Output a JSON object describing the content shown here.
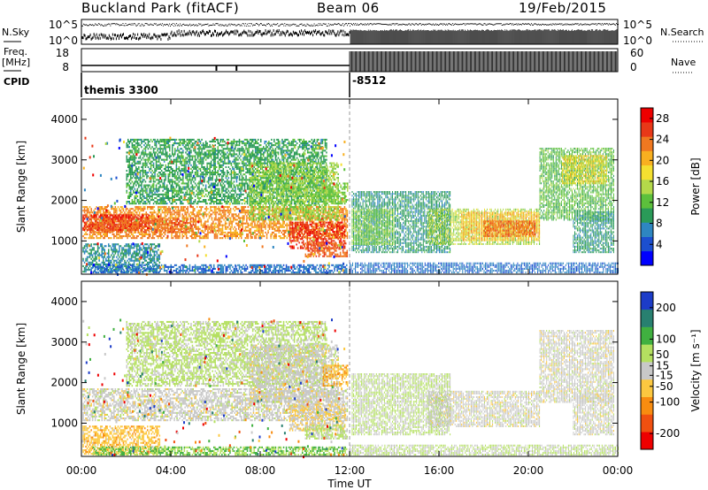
{
  "header": {
    "station": "Buckland Park (fitACF)",
    "beam": "Beam 06",
    "date": "19/Feb/2015"
  },
  "top_panel": {
    "left_labels": {
      "nsky": "N.Sky",
      "freq_line1": "Freq.",
      "freq_line2": "[MHz]",
      "cpid": "CPID"
    },
    "right_labels": {
      "nsearch": "N.Search",
      "nave": "Nave"
    },
    "noise_ticks": [
      "10^5",
      "10^0"
    ],
    "freq_ticks": [
      "18",
      "8"
    ],
    "nave_ticks": [
      "60",
      "0"
    ],
    "cpid_values": [
      "themis 3300",
      "-8512"
    ]
  },
  "x_axis": {
    "label": "Time UT",
    "ticks": [
      "00:00",
      "04:00",
      "08:00",
      "12:00",
      "16:00",
      "20:00",
      "00:00"
    ],
    "tick_hours": [
      0,
      4,
      8,
      12,
      16,
      20,
      24
    ]
  },
  "y_axis": {
    "label": "Slant Range [km]",
    "ticks": [
      "1000",
      "2000",
      "3000",
      "4000"
    ],
    "tick_values": [
      1000,
      2000,
      3000,
      4000
    ]
  },
  "chart_data": [
    {
      "type": "heatmap",
      "panel": "power",
      "ylabel": "Slant Range [km]",
      "xlabel": "Time UT",
      "xlim_hours": [
        0,
        24
      ],
      "ylim_km": [
        180,
        4500
      ],
      "colorbar": {
        "label": "Power [dB]",
        "ticks": [
          "4",
          "8",
          "12",
          "16",
          "20",
          "24",
          "28"
        ],
        "tick_values": [
          4,
          8,
          12,
          16,
          20,
          24,
          28
        ],
        "range": [
          0,
          30
        ],
        "colors": [
          "#0000ff",
          "#1c4fd0",
          "#2e86c1",
          "#2a9a58",
          "#5cc03c",
          "#b4d94a",
          "#f4e030",
          "#f8b020",
          "#f07820",
          "#e83818",
          "#ee0000"
        ]
      },
      "regions": [
        {
          "t": [
            0.05,
            11.9
          ],
          "r": [
            1050,
            1850
          ],
          "v": 22
        },
        {
          "t": [
            0.05,
            3.0
          ],
          "r": [
            1250,
            1650
          ],
          "v": 27
        },
        {
          "t": [
            0.3,
            5.0
          ],
          "r": [
            1200,
            1550
          ],
          "v": 24
        },
        {
          "t": [
            0.05,
            3.5
          ],
          "r": [
            220,
            900
          ],
          "v": 8
        },
        {
          "t": [
            0.5,
            11.9
          ],
          "r": [
            200,
            400
          ],
          "v": 6
        },
        {
          "t": [
            2.0,
            11.0
          ],
          "r": [
            1900,
            3500
          ],
          "v": 10
        },
        {
          "t": [
            7.5,
            11.5
          ],
          "r": [
            1500,
            2900
          ],
          "v": 14
        },
        {
          "t": [
            9.3,
            11.8
          ],
          "r": [
            800,
            1450
          ],
          "v": 26
        },
        {
          "t": [
            10.8,
            11.9
          ],
          "r": [
            1900,
            2400
          ],
          "v": 13
        },
        {
          "t": [
            10.0,
            11.9
          ],
          "r": [
            600,
            950
          ],
          "v": 24
        },
        {
          "t": [
            12.0,
            24.0
          ],
          "r": [
            200,
            450
          ],
          "v": 6
        },
        {
          "t": [
            12.1,
            16.5
          ],
          "r": [
            700,
            2200
          ],
          "v": 9
        },
        {
          "t": [
            12.1,
            14.0
          ],
          "r": [
            900,
            1800
          ],
          "v": 13
        },
        {
          "t": [
            15.5,
            20.5
          ],
          "r": [
            900,
            1800
          ],
          "v": 15
        },
        {
          "t": [
            17.0,
            20.5
          ],
          "r": [
            1000,
            1700
          ],
          "v": 20
        },
        {
          "t": [
            18.0,
            20.3
          ],
          "r": [
            1100,
            1500
          ],
          "v": 24
        },
        {
          "t": [
            20.5,
            23.8
          ],
          "r": [
            1500,
            3300
          ],
          "v": 12
        },
        {
          "t": [
            21.5,
            23.5
          ],
          "r": [
            2400,
            3100
          ],
          "v": 18
        },
        {
          "t": [
            22.0,
            23.8
          ],
          "r": [
            700,
            1700
          ],
          "v": 9
        }
      ]
    },
    {
      "type": "heatmap",
      "panel": "velocity",
      "ylabel": "Slant Range [km]",
      "xlabel": "Time UT",
      "xlim_hours": [
        0,
        24
      ],
      "ylim_km": [
        180,
        4500
      ],
      "colorbar": {
        "label": "Velocity [m s^-1]",
        "ticks": [
          "-200",
          "-100",
          "-50",
          "-15",
          "15",
          "50",
          "100",
          "200"
        ],
        "tick_values": [
          -200,
          -100,
          -50,
          -15,
          15,
          50,
          100,
          200
        ],
        "range": [
          -250,
          250
        ],
        "colors": [
          "#ee0000",
          "#f05010",
          "#f88c10",
          "#fcc840",
          "#c8c8c8",
          "#b4e060",
          "#40b040",
          "#288070",
          "#1c3cc8"
        ]
      },
      "regions": [
        {
          "t": [
            0.05,
            11.9
          ],
          "r": [
            1050,
            1850
          ],
          "v": 0
        },
        {
          "t": [
            0.05,
            3.5
          ],
          "r": [
            220,
            900
          ],
          "v": -60
        },
        {
          "t": [
            0.5,
            11.9
          ],
          "r": [
            200,
            400
          ],
          "v": 80
        },
        {
          "t": [
            2.0,
            11.0
          ],
          "r": [
            1900,
            3500
          ],
          "v": 40
        },
        {
          "t": [
            7.5,
            11.5
          ],
          "r": [
            1500,
            2900
          ],
          "v": 0
        },
        {
          "t": [
            9.3,
            11.8
          ],
          "r": [
            800,
            1450
          ],
          "v": -30
        },
        {
          "t": [
            10.8,
            11.9
          ],
          "r": [
            1900,
            2400
          ],
          "v": -70
        },
        {
          "t": [
            10.0,
            11.9
          ],
          "r": [
            600,
            950
          ],
          "v": 40
        },
        {
          "t": [
            12.0,
            24.0
          ],
          "r": [
            200,
            450
          ],
          "v": 30
        },
        {
          "t": [
            12.1,
            16.5
          ],
          "r": [
            700,
            2200
          ],
          "v": 30
        },
        {
          "t": [
            15.5,
            20.5
          ],
          "r": [
            900,
            1800
          ],
          "v": 0
        },
        {
          "t": [
            20.5,
            23.8
          ],
          "r": [
            1500,
            3300
          ],
          "v": 0
        },
        {
          "t": [
            22.0,
            23.8
          ],
          "r": [
            700,
            1700
          ],
          "v": 0
        }
      ]
    }
  ]
}
